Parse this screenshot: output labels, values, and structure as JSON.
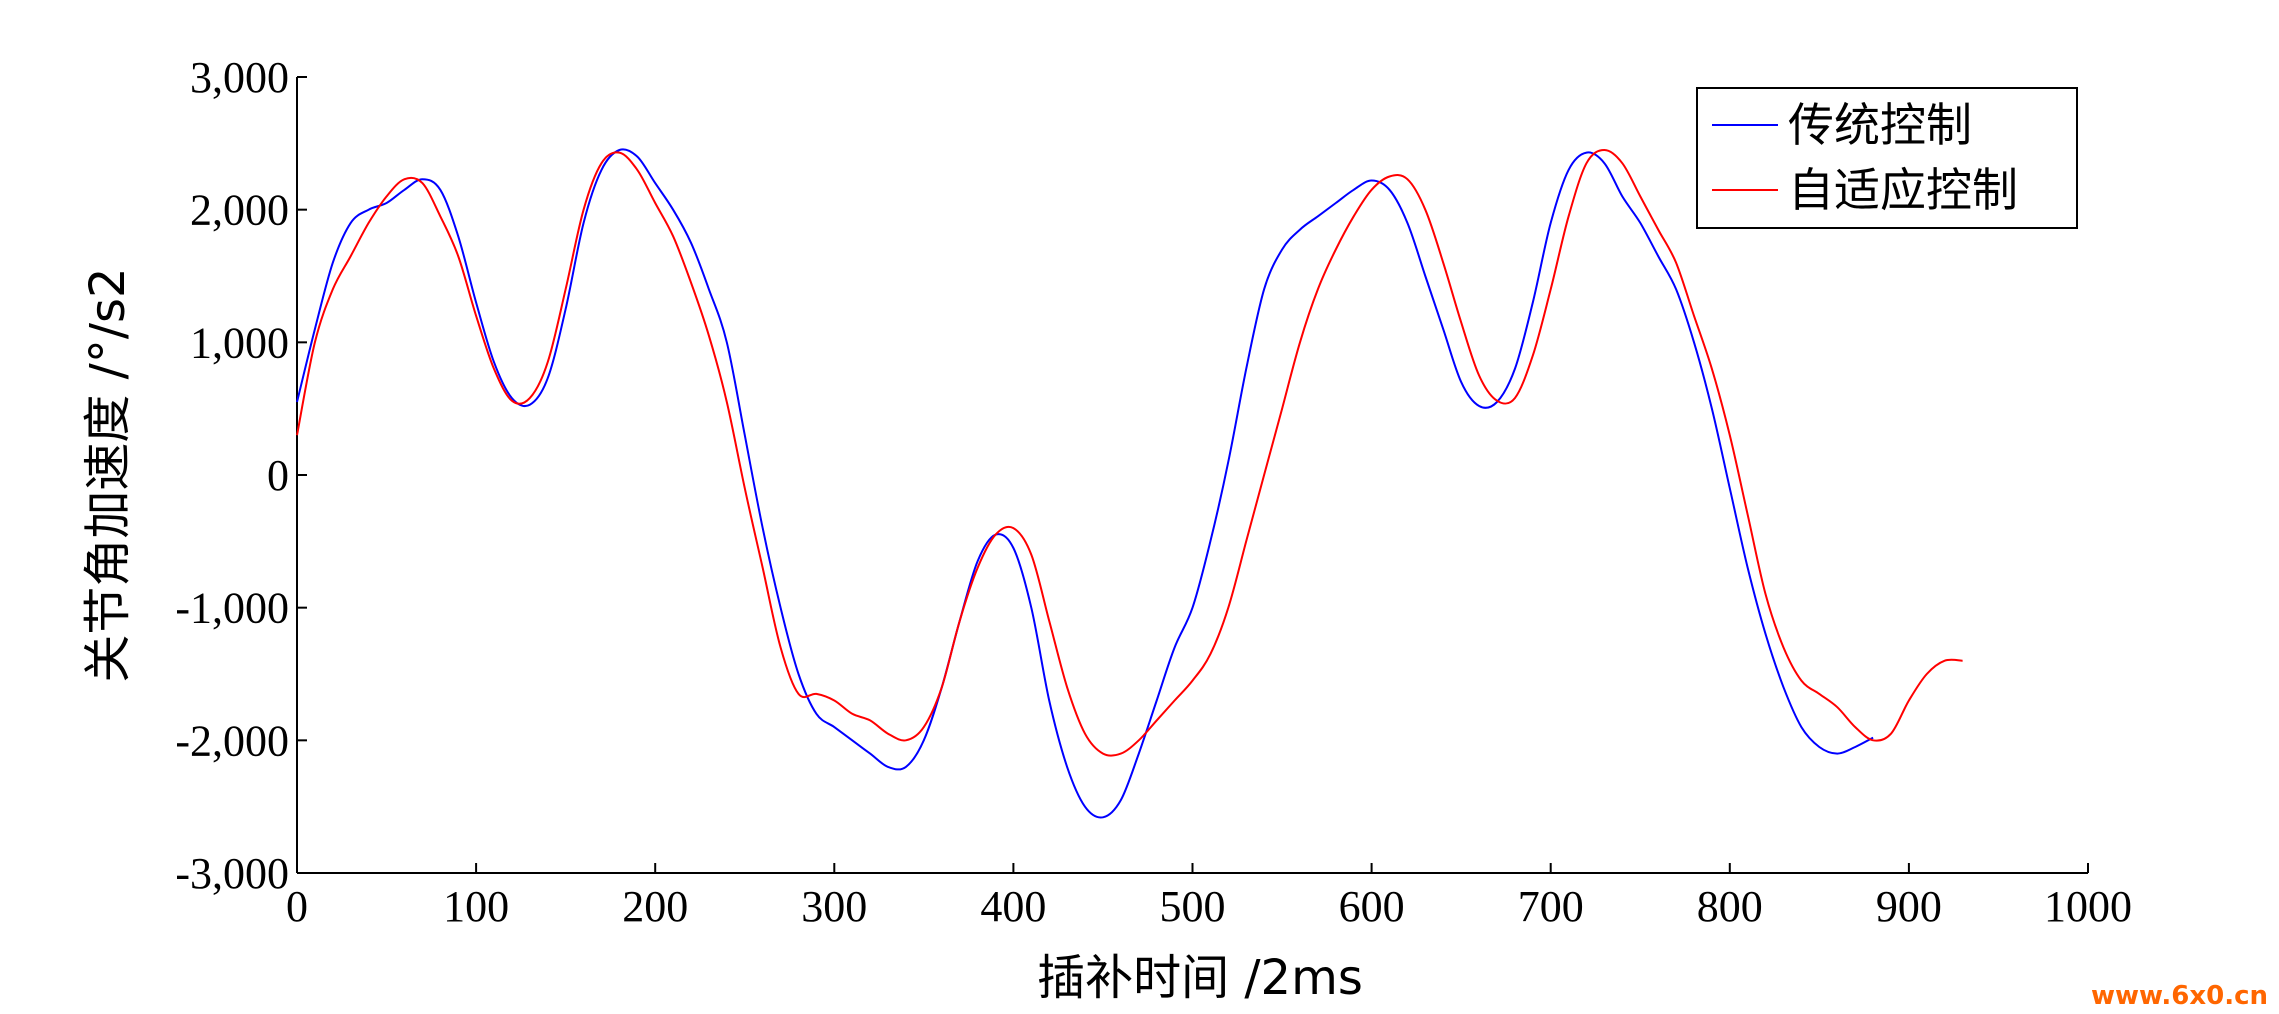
{
  "chart_data": {
    "type": "line",
    "title": "",
    "xlabel": "插补时间 /2ms",
    "ylabel": "关节角加速度 /°/s2",
    "xlim": [
      0,
      1000
    ],
    "ylim": [
      -3000,
      3000
    ],
    "xticks": [
      0,
      100,
      200,
      300,
      400,
      500,
      600,
      700,
      800,
      900,
      1000
    ],
    "yticks": [
      -3000,
      -2000,
      -1000,
      0,
      1000,
      2000,
      3000
    ],
    "xtick_labels": [
      "0",
      "100",
      "200",
      "300",
      "400",
      "500",
      "600",
      "700",
      "800",
      "900",
      "1000"
    ],
    "ytick_labels": [
      "-3,000",
      "-2,000",
      "-1,000",
      "0",
      "1,000",
      "2,000",
      "3,000"
    ],
    "grid": false,
    "legend_position": "top-right",
    "series": [
      {
        "name": "传统控制",
        "color": "#0000ff",
        "x": [
          0,
          10,
          20,
          30,
          40,
          50,
          60,
          70,
          80,
          90,
          100,
          110,
          120,
          130,
          140,
          150,
          160,
          170,
          180,
          190,
          200,
          210,
          220,
          230,
          240,
          250,
          260,
          270,
          280,
          290,
          300,
          310,
          320,
          330,
          340,
          350,
          360,
          370,
          380,
          390,
          400,
          410,
          420,
          430,
          440,
          450,
          460,
          470,
          480,
          490,
          500,
          510,
          520,
          530,
          540,
          550,
          560,
          570,
          580,
          590,
          600,
          610,
          620,
          630,
          640,
          650,
          660,
          670,
          680,
          690,
          700,
          710,
          720,
          730,
          740,
          750,
          760,
          770,
          780,
          790,
          800,
          810,
          820,
          830,
          840,
          850,
          860,
          870,
          880
        ],
        "y": [
          550,
          1100,
          1600,
          1900,
          2000,
          2050,
          2150,
          2230,
          2150,
          1800,
          1300,
          850,
          580,
          530,
          730,
          1250,
          1900,
          2300,
          2450,
          2400,
          2200,
          2000,
          1750,
          1400,
          1000,
          300,
          -400,
          -1000,
          -1500,
          -1800,
          -1900,
          -2000,
          -2100,
          -2200,
          -2200,
          -2000,
          -1600,
          -1100,
          -650,
          -450,
          -550,
          -1000,
          -1700,
          -2200,
          -2500,
          -2580,
          -2450,
          -2100,
          -1700,
          -1300,
          -1000,
          -500,
          100,
          800,
          1400,
          1700,
          1850,
          1950,
          2050,
          2150,
          2220,
          2150,
          1900,
          1500,
          1100,
          700,
          520,
          550,
          800,
          1300,
          1900,
          2300,
          2430,
          2350,
          2100,
          1900,
          1650,
          1400,
          1000,
          500,
          -100,
          -700,
          -1200,
          -1600,
          -1900,
          -2050,
          -2100,
          -2050,
          -1980
        ]
      },
      {
        "name": "自适应控制",
        "color": "#ff0000",
        "x": [
          0,
          10,
          20,
          30,
          40,
          50,
          60,
          70,
          80,
          90,
          100,
          110,
          120,
          130,
          140,
          150,
          160,
          170,
          180,
          190,
          200,
          210,
          220,
          230,
          240,
          250,
          260,
          270,
          280,
          290,
          300,
          310,
          320,
          330,
          340,
          350,
          360,
          370,
          380,
          390,
          400,
          410,
          420,
          430,
          440,
          450,
          460,
          470,
          480,
          490,
          500,
          510,
          520,
          530,
          540,
          550,
          560,
          570,
          580,
          590,
          600,
          610,
          620,
          630,
          640,
          650,
          660,
          670,
          680,
          690,
          700,
          710,
          720,
          730,
          740,
          750,
          760,
          770,
          780,
          790,
          800,
          810,
          820,
          830,
          840,
          850,
          860,
          870,
          880,
          890,
          900,
          910,
          920,
          930
        ],
        "y": [
          300,
          1000,
          1400,
          1650,
          1900,
          2100,
          2230,
          2200,
          1950,
          1650,
          1200,
          800,
          560,
          580,
          850,
          1400,
          2000,
          2350,
          2430,
          2300,
          2050,
          1800,
          1450,
          1050,
          550,
          -100,
          -700,
          -1300,
          -1650,
          -1650,
          -1700,
          -1800,
          -1850,
          -1950,
          -2000,
          -1900,
          -1600,
          -1100,
          -700,
          -450,
          -400,
          -600,
          -1100,
          -1600,
          -1950,
          -2100,
          -2100,
          -2000,
          -1850,
          -1700,
          -1550,
          -1350,
          -1000,
          -500,
          0,
          500,
          1000,
          1400,
          1700,
          1950,
          2150,
          2250,
          2230,
          2000,
          1600,
          1150,
          750,
          560,
          580,
          900,
          1400,
          1950,
          2350,
          2450,
          2350,
          2100,
          1850,
          1600,
          1200,
          800,
          300,
          -300,
          -900,
          -1300,
          -1550,
          -1650,
          -1750,
          -1900,
          -2000,
          -1950,
          -1700,
          -1500,
          -1400,
          -1400
        ]
      }
    ]
  },
  "watermark": "www.6x0.cn"
}
